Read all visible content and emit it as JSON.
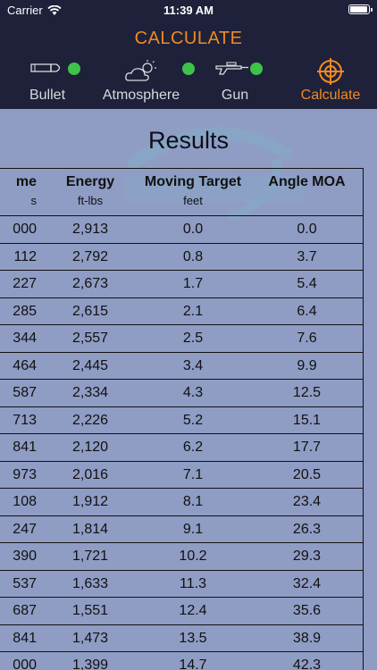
{
  "status": {
    "carrier": "Carrier",
    "time": "11:39 AM"
  },
  "header": {
    "title": "CALCULATE"
  },
  "tabs": [
    {
      "label": "Bullet",
      "icon": "bullet-icon",
      "status": "complete"
    },
    {
      "label": "Atmosphere",
      "icon": "cloud-sun-icon",
      "status": "complete"
    },
    {
      "label": "Gun",
      "icon": "rifle-icon",
      "status": "complete"
    },
    {
      "label": "Calculate",
      "icon": "crosshair-icon",
      "status": "active"
    }
  ],
  "colors": {
    "accent": "#f08a24",
    "status_ok": "#3fc24a",
    "nav_bg": "#1e2139",
    "content_bg": "#8f9cc4"
  },
  "results": {
    "title": "Results",
    "columns": [
      {
        "title": "me",
        "unit": "s"
      },
      {
        "title": "Energy",
        "unit": "ft-lbs"
      },
      {
        "title": "Moving Target",
        "unit": "feet"
      },
      {
        "title": "Angle MOA",
        "unit": ""
      }
    ],
    "rows": [
      [
        "000",
        "2,913",
        "0.0",
        "0.0"
      ],
      [
        "112",
        "2,792",
        "0.8",
        "3.7"
      ],
      [
        "227",
        "2,673",
        "1.7",
        "5.4"
      ],
      [
        "285",
        "2,615",
        "2.1",
        "6.4"
      ],
      [
        "344",
        "2,557",
        "2.5",
        "7.6"
      ],
      [
        "464",
        "2,445",
        "3.4",
        "9.9"
      ],
      [
        "587",
        "2,334",
        "4.3",
        "12.5"
      ],
      [
        "713",
        "2,226",
        "5.2",
        "15.1"
      ],
      [
        "841",
        "2,120",
        "6.2",
        "17.7"
      ],
      [
        "973",
        "2,016",
        "7.1",
        "20.5"
      ],
      [
        "108",
        "1,912",
        "8.1",
        "23.4"
      ],
      [
        "247",
        "1,814",
        "9.1",
        "26.3"
      ],
      [
        "390",
        "1,721",
        "10.2",
        "29.3"
      ],
      [
        "537",
        "1,633",
        "11.3",
        "32.4"
      ],
      [
        "687",
        "1,551",
        "12.4",
        "35.6"
      ],
      [
        "841",
        "1,473",
        "13.5",
        "38.9"
      ],
      [
        "000",
        "1,399",
        "14.7",
        "42.3"
      ]
    ]
  }
}
